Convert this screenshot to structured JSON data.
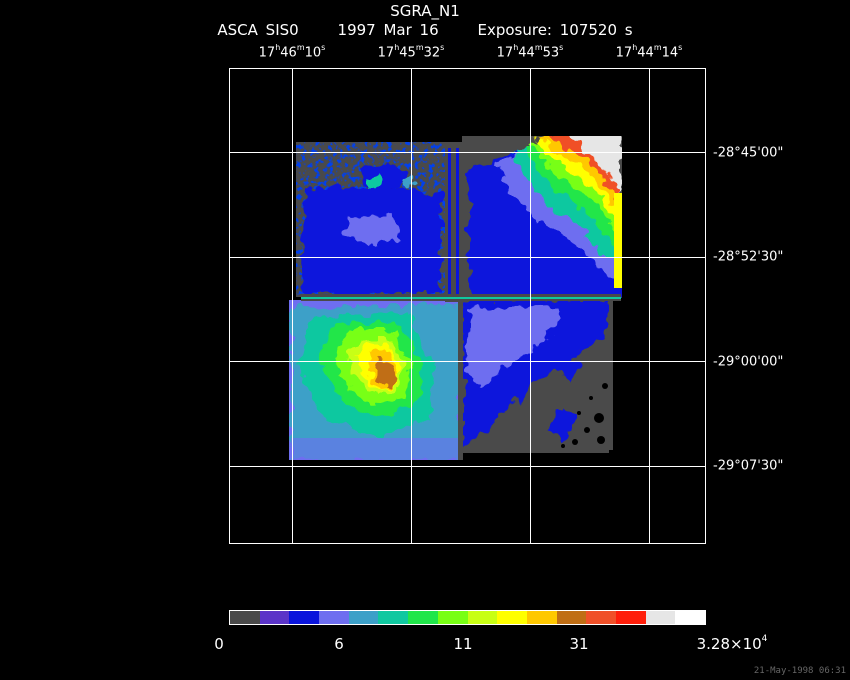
{
  "header": {
    "object": "SGRA_N1",
    "instrument": "ASCA SIS0",
    "date": "1997 Mar 16",
    "exposure": "Exposure: 107520 s"
  },
  "ra_labels": [
    {
      "h": "17",
      "m": "46",
      "s": "10"
    },
    {
      "h": "17",
      "m": "45",
      "s": "32"
    },
    {
      "h": "17",
      "m": "44",
      "s": "53"
    },
    {
      "h": "17",
      "m": "44",
      "s": "14"
    }
  ],
  "dec_labels": [
    "-28°45'00\"",
    "-28°52'30\"",
    "-29°00'00\"",
    "-29°07'30\""
  ],
  "colorbar": {
    "colors": [
      "#4a4a4a",
      "#5b34c8",
      "#0a14dc",
      "#6e6ef0",
      "#3ca0c8",
      "#10c8a0",
      "#20e64a",
      "#78ff14",
      "#c8ff14",
      "#ffff00",
      "#ffc800",
      "#c06e14",
      "#f05028",
      "#ff1e0a",
      "#e6e6e6",
      "#ffffff"
    ],
    "labels": [
      {
        "text": "0"
      },
      {
        "text": "6"
      },
      {
        "text": "11"
      },
      {
        "text": "31"
      },
      {
        "text": "3.28×10",
        "sup": "4"
      }
    ]
  },
  "timestamp": "21-May-1998 06:31"
}
